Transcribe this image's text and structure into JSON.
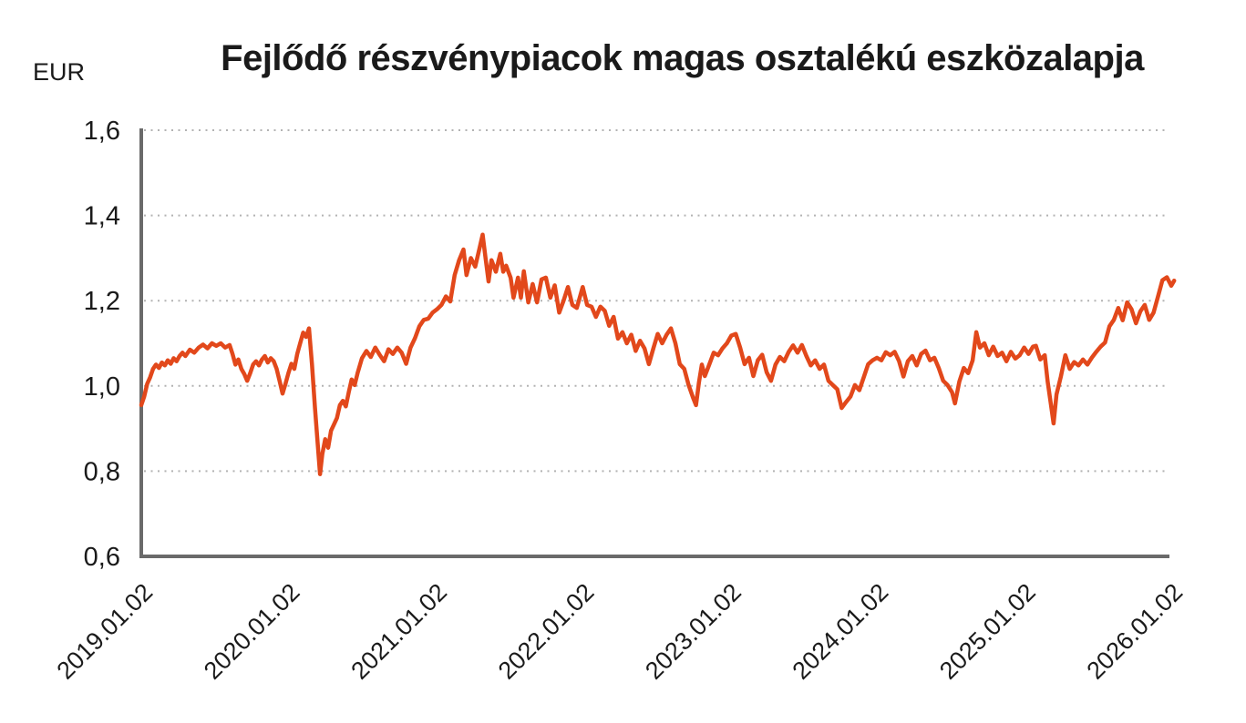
{
  "title": "Fejlődő részvénypiacok magas osztalékú eszközalapja",
  "axis_unit_label": "EUR",
  "chart_data": {
    "type": "line",
    "title": "Fejlődő részvénypiacok magas osztalékú eszközalapja",
    "ylabel": "EUR",
    "xlabel": "",
    "grid": "horizontal-dotted",
    "legend": "none",
    "x_axis": {
      "unit": "decimal_year",
      "range": [
        2019.0,
        2026.0
      ],
      "tick_values": [
        2019,
        2020,
        2021,
        2022,
        2023,
        2024,
        2025,
        2026
      ],
      "tick_labels": [
        "2019.01.02",
        "2020.01.02",
        "2021.01.02",
        "2022.01.02",
        "2023.01.02",
        "2024.01.02",
        "2025.01.02",
        "2026.01.02"
      ],
      "tick_label_rotation_deg": 45
    },
    "y_axis": {
      "range": [
        0.6,
        1.6
      ],
      "tick_values": [
        1.6,
        1.4,
        1.2,
        1.0,
        0.8,
        0.6
      ],
      "tick_labels": [
        "1,6",
        "1,4",
        "1,2",
        "1,0",
        "0,8",
        "0,6"
      ]
    },
    "series": [
      {
        "name": "Fejlődő részvénypiacok magas osztalékú eszközalapja",
        "color": "#E2481B",
        "points": [
          [
            2019.0,
            0.955
          ],
          [
            2019.02,
            0.975
          ],
          [
            2019.04,
            1.005
          ],
          [
            2019.06,
            1.02
          ],
          [
            2019.08,
            1.04
          ],
          [
            2019.1,
            1.05
          ],
          [
            2019.12,
            1.042
          ],
          [
            2019.14,
            1.055
          ],
          [
            2019.16,
            1.048
          ],
          [
            2019.18,
            1.06
          ],
          [
            2019.2,
            1.052
          ],
          [
            2019.22,
            1.065
          ],
          [
            2019.24,
            1.058
          ],
          [
            2019.26,
            1.07
          ],
          [
            2019.28,
            1.078
          ],
          [
            2019.3,
            1.07
          ],
          [
            2019.33,
            1.085
          ],
          [
            2019.36,
            1.078
          ],
          [
            2019.39,
            1.09
          ],
          [
            2019.42,
            1.097
          ],
          [
            2019.45,
            1.088
          ],
          [
            2019.48,
            1.1
          ],
          [
            2019.51,
            1.094
          ],
          [
            2019.54,
            1.1
          ],
          [
            2019.57,
            1.09
          ],
          [
            2019.6,
            1.096
          ],
          [
            2019.62,
            1.075
          ],
          [
            2019.64,
            1.05
          ],
          [
            2019.66,
            1.062
          ],
          [
            2019.68,
            1.04
          ],
          [
            2019.7,
            1.028
          ],
          [
            2019.72,
            1.012
          ],
          [
            2019.74,
            1.03
          ],
          [
            2019.76,
            1.05
          ],
          [
            2019.78,
            1.058
          ],
          [
            2019.8,
            1.048
          ],
          [
            2019.82,
            1.062
          ],
          [
            2019.84,
            1.07
          ],
          [
            2019.86,
            1.055
          ],
          [
            2019.88,
            1.065
          ],
          [
            2019.9,
            1.058
          ],
          [
            2019.92,
            1.04
          ],
          [
            2019.94,
            1.012
          ],
          [
            2019.96,
            0.982
          ],
          [
            2019.98,
            1.005
          ],
          [
            2020.0,
            1.03
          ],
          [
            2020.02,
            1.052
          ],
          [
            2020.04,
            1.04
          ],
          [
            2020.06,
            1.075
          ],
          [
            2020.08,
            1.1
          ],
          [
            2020.1,
            1.125
          ],
          [
            2020.12,
            1.115
          ],
          [
            2020.14,
            1.135
          ],
          [
            2020.16,
            1.05
          ],
          [
            2020.18,
            0.95
          ],
          [
            2020.2,
            0.86
          ],
          [
            2020.215,
            0.793
          ],
          [
            2020.23,
            0.84
          ],
          [
            2020.25,
            0.875
          ],
          [
            2020.27,
            0.855
          ],
          [
            2020.29,
            0.895
          ],
          [
            2020.31,
            0.91
          ],
          [
            2020.33,
            0.925
          ],
          [
            2020.35,
            0.955
          ],
          [
            2020.37,
            0.965
          ],
          [
            2020.39,
            0.952
          ],
          [
            2020.41,
            0.985
          ],
          [
            2020.43,
            1.015
          ],
          [
            2020.45,
            1.002
          ],
          [
            2020.47,
            1.03
          ],
          [
            2020.5,
            1.065
          ],
          [
            2020.53,
            1.082
          ],
          [
            2020.56,
            1.068
          ],
          [
            2020.59,
            1.09
          ],
          [
            2020.62,
            1.073
          ],
          [
            2020.65,
            1.058
          ],
          [
            2020.68,
            1.086
          ],
          [
            2020.71,
            1.075
          ],
          [
            2020.74,
            1.09
          ],
          [
            2020.77,
            1.078
          ],
          [
            2020.8,
            1.052
          ],
          [
            2020.83,
            1.09
          ],
          [
            2020.86,
            1.112
          ],
          [
            2020.89,
            1.14
          ],
          [
            2020.92,
            1.155
          ],
          [
            2020.95,
            1.158
          ],
          [
            2020.98,
            1.172
          ],
          [
            2021.01,
            1.18
          ],
          [
            2021.04,
            1.19
          ],
          [
            2021.07,
            1.21
          ],
          [
            2021.1,
            1.198
          ],
          [
            2021.13,
            1.26
          ],
          [
            2021.16,
            1.295
          ],
          [
            2021.19,
            1.32
          ],
          [
            2021.21,
            1.26
          ],
          [
            2021.24,
            1.3
          ],
          [
            2021.27,
            1.28
          ],
          [
            2021.3,
            1.325
          ],
          [
            2021.32,
            1.355
          ],
          [
            2021.34,
            1.3
          ],
          [
            2021.36,
            1.245
          ],
          [
            2021.38,
            1.295
          ],
          [
            2021.41,
            1.268
          ],
          [
            2021.44,
            1.31
          ],
          [
            2021.46,
            1.268
          ],
          [
            2021.48,
            1.282
          ],
          [
            2021.51,
            1.254
          ],
          [
            2021.53,
            1.207
          ],
          [
            2021.56,
            1.254
          ],
          [
            2021.58,
            1.207
          ],
          [
            2021.6,
            1.269
          ],
          [
            2021.63,
            1.196
          ],
          [
            2021.66,
            1.239
          ],
          [
            2021.69,
            1.196
          ],
          [
            2021.72,
            1.25
          ],
          [
            2021.75,
            1.254
          ],
          [
            2021.78,
            1.207
          ],
          [
            2021.81,
            1.236
          ],
          [
            2021.84,
            1.172
          ],
          [
            2021.87,
            1.2
          ],
          [
            2021.9,
            1.232
          ],
          [
            2021.93,
            1.19
          ],
          [
            2021.96,
            1.183
          ],
          [
            2022.0,
            1.232
          ],
          [
            2022.03,
            1.19
          ],
          [
            2022.06,
            1.186
          ],
          [
            2022.09,
            1.162
          ],
          [
            2022.12,
            1.186
          ],
          [
            2022.15,
            1.176
          ],
          [
            2022.18,
            1.141
          ],
          [
            2022.21,
            1.162
          ],
          [
            2022.24,
            1.111
          ],
          [
            2022.27,
            1.126
          ],
          [
            2022.3,
            1.1
          ],
          [
            2022.33,
            1.12
          ],
          [
            2022.36,
            1.082
          ],
          [
            2022.39,
            1.106
          ],
          [
            2022.42,
            1.088
          ],
          [
            2022.45,
            1.051
          ],
          [
            2022.48,
            1.088
          ],
          [
            2022.51,
            1.122
          ],
          [
            2022.54,
            1.1
          ],
          [
            2022.57,
            1.12
          ],
          [
            2022.6,
            1.135
          ],
          [
            2022.63,
            1.1
          ],
          [
            2022.66,
            1.051
          ],
          [
            2022.69,
            1.04
          ],
          [
            2022.72,
            1.002
          ],
          [
            2022.75,
            0.972
          ],
          [
            2022.77,
            0.955
          ],
          [
            2022.79,
            1.008
          ],
          [
            2022.81,
            1.05
          ],
          [
            2022.83,
            1.023
          ],
          [
            2022.86,
            1.05
          ],
          [
            2022.89,
            1.078
          ],
          [
            2022.92,
            1.072
          ],
          [
            2022.95,
            1.088
          ],
          [
            2022.98,
            1.1
          ],
          [
            2023.01,
            1.118
          ],
          [
            2023.04,
            1.122
          ],
          [
            2023.07,
            1.09
          ],
          [
            2023.1,
            1.051
          ],
          [
            2023.13,
            1.066
          ],
          [
            2023.16,
            1.023
          ],
          [
            2023.19,
            1.06
          ],
          [
            2023.22,
            1.073
          ],
          [
            2023.25,
            1.032
          ],
          [
            2023.28,
            1.012
          ],
          [
            2023.31,
            1.05
          ],
          [
            2023.34,
            1.068
          ],
          [
            2023.37,
            1.058
          ],
          [
            2023.4,
            1.08
          ],
          [
            2023.43,
            1.095
          ],
          [
            2023.46,
            1.078
          ],
          [
            2023.49,
            1.096
          ],
          [
            2023.52,
            1.07
          ],
          [
            2023.55,
            1.048
          ],
          [
            2023.58,
            1.06
          ],
          [
            2023.61,
            1.04
          ],
          [
            2023.64,
            1.05
          ],
          [
            2023.67,
            1.012
          ],
          [
            2023.7,
            1.002
          ],
          [
            2023.73,
            0.992
          ],
          [
            2023.76,
            0.948
          ],
          [
            2023.79,
            0.962
          ],
          [
            2023.82,
            0.975
          ],
          [
            2023.85,
            1.002
          ],
          [
            2023.88,
            0.99
          ],
          [
            2023.91,
            1.02
          ],
          [
            2023.94,
            1.051
          ],
          [
            2023.97,
            1.06
          ],
          [
            2024.0,
            1.066
          ],
          [
            2024.03,
            1.06
          ],
          [
            2024.06,
            1.079
          ],
          [
            2024.09,
            1.072
          ],
          [
            2024.12,
            1.08
          ],
          [
            2024.15,
            1.058
          ],
          [
            2024.18,
            1.022
          ],
          [
            2024.21,
            1.058
          ],
          [
            2024.24,
            1.07
          ],
          [
            2024.27,
            1.048
          ],
          [
            2024.3,
            1.075
          ],
          [
            2024.33,
            1.083
          ],
          [
            2024.36,
            1.06
          ],
          [
            2024.39,
            1.066
          ],
          [
            2024.42,
            1.042
          ],
          [
            2024.45,
            1.012
          ],
          [
            2024.48,
            1.002
          ],
          [
            2024.51,
            0.985
          ],
          [
            2024.53,
            0.959
          ],
          [
            2024.56,
            1.01
          ],
          [
            2024.59,
            1.042
          ],
          [
            2024.62,
            1.03
          ],
          [
            2024.65,
            1.06
          ],
          [
            2024.675,
            1.126
          ],
          [
            2024.7,
            1.09
          ],
          [
            2024.73,
            1.1
          ],
          [
            2024.76,
            1.072
          ],
          [
            2024.79,
            1.092
          ],
          [
            2024.82,
            1.07
          ],
          [
            2024.85,
            1.078
          ],
          [
            2024.88,
            1.058
          ],
          [
            2024.91,
            1.08
          ],
          [
            2024.94,
            1.064
          ],
          [
            2024.97,
            1.072
          ],
          [
            2025.0,
            1.09
          ],
          [
            2025.03,
            1.075
          ],
          [
            2025.06,
            1.092
          ],
          [
            2025.08,
            1.094
          ],
          [
            2025.11,
            1.062
          ],
          [
            2025.14,
            1.072
          ],
          [
            2025.16,
            1.01
          ],
          [
            2025.18,
            0.962
          ],
          [
            2025.2,
            0.912
          ],
          [
            2025.22,
            0.98
          ],
          [
            2025.25,
            1.022
          ],
          [
            2025.28,
            1.072
          ],
          [
            2025.31,
            1.04
          ],
          [
            2025.34,
            1.056
          ],
          [
            2025.37,
            1.048
          ],
          [
            2025.4,
            1.062
          ],
          [
            2025.43,
            1.05
          ],
          [
            2025.46,
            1.066
          ],
          [
            2025.49,
            1.08
          ],
          [
            2025.52,
            1.092
          ],
          [
            2025.55,
            1.102
          ],
          [
            2025.58,
            1.14
          ],
          [
            2025.61,
            1.155
          ],
          [
            2025.64,
            1.183
          ],
          [
            2025.67,
            1.154
          ],
          [
            2025.7,
            1.196
          ],
          [
            2025.73,
            1.18
          ],
          [
            2025.76,
            1.147
          ],
          [
            2025.79,
            1.175
          ],
          [
            2025.82,
            1.19
          ],
          [
            2025.85,
            1.155
          ],
          [
            2025.88,
            1.172
          ],
          [
            2025.91,
            1.21
          ],
          [
            2025.94,
            1.248
          ],
          [
            2025.97,
            1.255
          ],
          [
            2026.0,
            1.235
          ],
          [
            2026.02,
            1.247
          ]
        ]
      }
    ]
  }
}
